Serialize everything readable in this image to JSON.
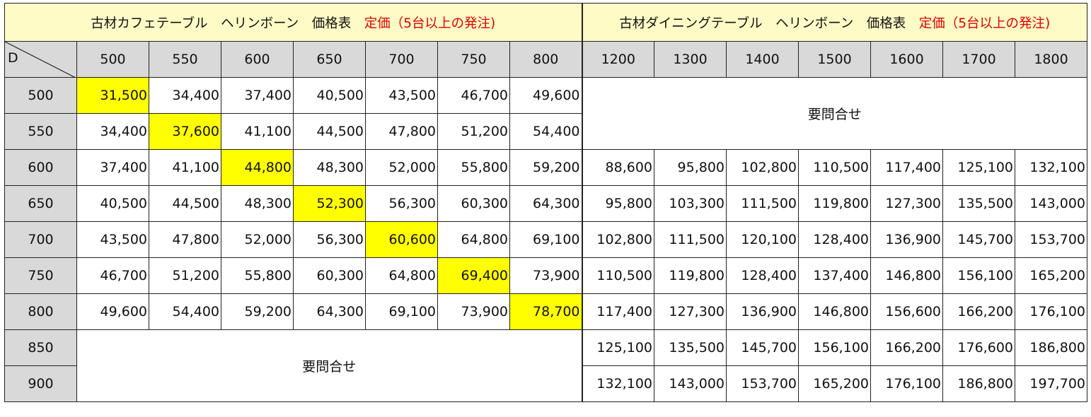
{
  "left_title": {
    "main": "古材カフェテーブル　ヘリンボーン　価格表",
    "note": "定価（5台以上の発注)"
  },
  "right_title": {
    "main": "古材ダイニングテーブル　ヘリンボーン　価格表",
    "note": "定価（5台以上の発注)"
  },
  "corner_label": "D",
  "inquiry_text": "要問合せ",
  "accent_color": "#ffff00",
  "note_color": "#e00000",
  "columns_left": [
    "500",
    "550",
    "600",
    "650",
    "700",
    "750",
    "800"
  ],
  "columns_right": [
    "1200",
    "1300",
    "1400",
    "1500",
    "1600",
    "1700",
    "1800"
  ],
  "rows": [
    {
      "d": "500",
      "left": [
        "31,500",
        "34,400",
        "37,400",
        "40,500",
        "43,500",
        "46,700",
        "49,600"
      ],
      "right": null
    },
    {
      "d": "550",
      "left": [
        "34,400",
        "37,600",
        "41,100",
        "44,500",
        "47,800",
        "51,200",
        "54,400"
      ],
      "right": null
    },
    {
      "d": "600",
      "left": [
        "37,400",
        "41,100",
        "44,800",
        "48,300",
        "52,000",
        "55,800",
        "59,200"
      ],
      "right": [
        "88,600",
        "95,800",
        "102,800",
        "110,500",
        "117,400",
        "125,100",
        "132,100"
      ]
    },
    {
      "d": "650",
      "left": [
        "40,500",
        "44,500",
        "48,300",
        "52,300",
        "56,300",
        "60,300",
        "64,300"
      ],
      "right": [
        "95,800",
        "103,300",
        "111,500",
        "119,800",
        "127,300",
        "135,500",
        "143,000"
      ]
    },
    {
      "d": "700",
      "left": [
        "43,500",
        "47,800",
        "52,000",
        "56,300",
        "60,600",
        "64,800",
        "69,100"
      ],
      "right": [
        "102,800",
        "111,500",
        "120,100",
        "128,400",
        "136,900",
        "145,700",
        "153,700"
      ]
    },
    {
      "d": "750",
      "left": [
        "46,700",
        "51,200",
        "55,800",
        "60,300",
        "64,800",
        "69,400",
        "73,900"
      ],
      "right": [
        "110,500",
        "119,800",
        "128,400",
        "137,400",
        "146,800",
        "156,100",
        "165,200"
      ]
    },
    {
      "d": "800",
      "left": [
        "49,600",
        "54,400",
        "59,200",
        "64,300",
        "69,100",
        "73,900",
        "78,700"
      ],
      "right": [
        "117,400",
        "127,300",
        "136,900",
        "146,800",
        "156,600",
        "166,200",
        "176,100"
      ]
    },
    {
      "d": "850",
      "left": null,
      "right": [
        "125,100",
        "135,500",
        "145,700",
        "156,100",
        "166,200",
        "176,600",
        "186,800"
      ]
    },
    {
      "d": "900",
      "left": null,
      "right": [
        "132,100",
        "143,000",
        "153,700",
        "165,200",
        "176,100",
        "186,800",
        "197,700"
      ]
    }
  ],
  "highlighted_cells": [
    [
      0,
      0
    ],
    [
      1,
      1
    ],
    [
      2,
      2
    ],
    [
      3,
      3
    ],
    [
      4,
      4
    ],
    [
      5,
      5
    ],
    [
      6,
      6
    ]
  ]
}
